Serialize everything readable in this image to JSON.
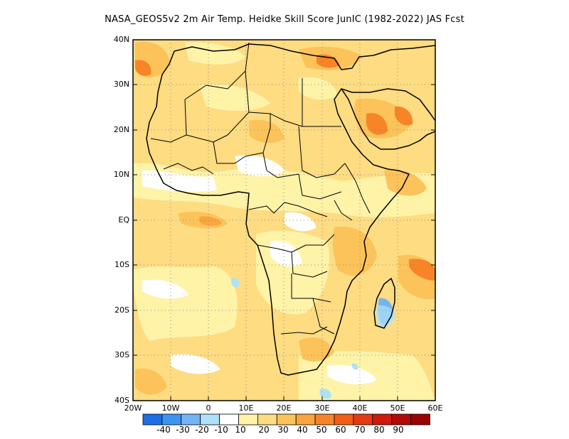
{
  "title": "NASA_GEOS5v2  2m Air Temp. Heidke Skill Score JunIC (1982-2022) JAS Fcst",
  "map": {
    "lat_labels": [
      "40N",
      "30N",
      "20N",
      "10N",
      "EQ",
      "10S",
      "20S",
      "30S",
      "40S"
    ],
    "lon_labels": [
      "20W",
      "10W",
      "0",
      "10E",
      "20E",
      "30E",
      "40E",
      "50E",
      "60E"
    ],
    "region": {
      "lon_range": [
        -20,
        60
      ],
      "lat_range": [
        -40,
        40
      ]
    }
  },
  "colorbar": {
    "colors": [
      "#1f6ee6",
      "#3d94f0",
      "#74b4f4",
      "#aee1f8",
      "#ffffff",
      "#fff3a8",
      "#fedc82",
      "#fcc35a",
      "#fba53c",
      "#f88428",
      "#f15e16",
      "#e63a10",
      "#d01a0a",
      "#b40a06",
      "#9a0400"
    ],
    "labels": [
      "-40",
      "-30",
      "-20",
      "-10",
      "10",
      "20",
      "30",
      "40",
      "50",
      "60",
      "70",
      "80",
      "90"
    ]
  },
  "colors": {
    "background_fill": "#fedc82",
    "coast_line": "#000000",
    "grid_line": "#888888"
  }
}
